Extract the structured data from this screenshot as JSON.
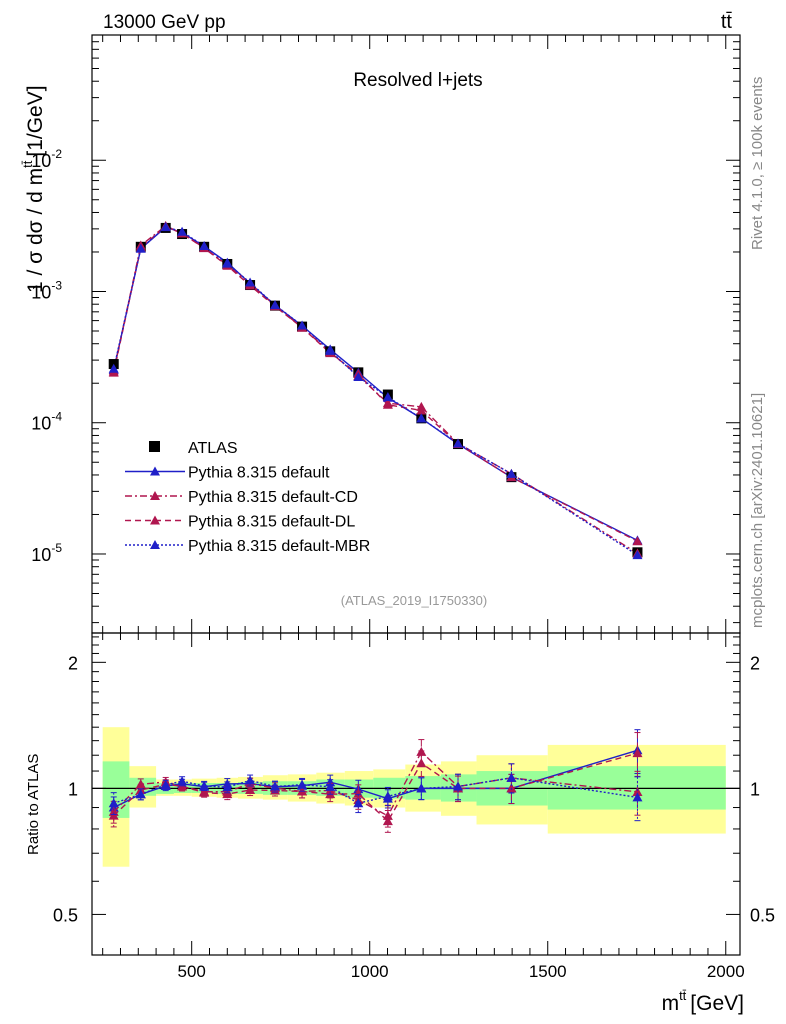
{
  "chart_data": {
    "type": "line",
    "header_left": "13000 GeV pp",
    "header_right": "tt̄",
    "title": "Resolved l+jets",
    "analysis_id": "(ATLAS_2019_I1750330)",
    "side_label_top": "Rivet 4.1.0, ≥ 100k events",
    "side_label_bottom": "mcplots.cern.ch [arXiv:2401.10621]",
    "xlabel": "m^{t t̄} [GeV]",
    "xlabel_main": "m",
    "xlabel_sup": "tt̄",
    "xlabel_unit": "[GeV]",
    "ylabel": "1 / σ dσ / d m^{tt̄} [1/GeV]",
    "ylabel_main": "1 / σ dσ / d m",
    "ylabel_sup": "tt̄",
    "ylabel_unit": "[1/GeV]",
    "ratio_ylabel": "Ratio to ATLAS",
    "xlim": [
      220,
      2040
    ],
    "ylim": [
      2.5e-06,
      0.09
    ],
    "yscale": "log",
    "ratio_ylim": [
      0.4,
      2.35
    ],
    "ratio_yscale": "log",
    "x_ticks": [
      "500",
      "1000",
      "1500",
      "2000"
    ],
    "y_ticks": [
      "10^{-5}",
      "10^{-4}",
      "10^{-3}",
      "10^{-2}"
    ],
    "ratio_ticks": [
      "0.5",
      "1",
      "2"
    ],
    "bin_edges": [
      250,
      325,
      400,
      450,
      500,
      570,
      630,
      700,
      770,
      850,
      930,
      1010,
      1100,
      1200,
      1300,
      1500,
      2000
    ],
    "legend": [
      "ATLAS",
      "Pythia 8.315 default",
      "Pythia 8.315 default-CD",
      "Pythia 8.315 default-DL",
      "Pythia 8.315 default-MBR"
    ],
    "legend_position": "lower-left",
    "data": {
      "name": "ATLAS",
      "x": [
        281,
        357,
        427,
        473,
        535,
        600,
        664,
        734,
        810,
        889,
        968,
        1051,
        1145,
        1248,
        1398,
        1752
      ],
      "y": [
        0.00028,
        0.00219,
        0.00305,
        0.00274,
        0.00219,
        0.00162,
        0.00112,
        0.00078,
        0.00054,
        0.00035,
        0.000242,
        0.000164,
        0.000108,
        6.88e-05,
        3.85e-05,
        1.03e-05
      ],
      "band_inner": [
        [
          0.85,
          1.16
        ],
        [
          0.96,
          1.06
        ],
        [
          0.97,
          1.03
        ],
        [
          0.975,
          1.03
        ],
        [
          0.975,
          1.03
        ],
        [
          0.97,
          1.03
        ],
        [
          0.97,
          1.035
        ],
        [
          0.965,
          1.04
        ],
        [
          0.965,
          1.04
        ],
        [
          0.96,
          1.05
        ],
        [
          0.95,
          1.05
        ],
        [
          0.945,
          1.06
        ],
        [
          0.94,
          1.07
        ],
        [
          0.93,
          1.08
        ],
        [
          0.91,
          1.1
        ],
        [
          0.89,
          1.13
        ]
      ],
      "band_outer": [
        [
          0.65,
          1.4
        ],
        [
          0.9,
          1.13
        ],
        [
          0.96,
          1.05
        ],
        [
          0.96,
          1.05
        ],
        [
          0.955,
          1.055
        ],
        [
          0.95,
          1.06
        ],
        [
          0.945,
          1.065
        ],
        [
          0.94,
          1.075
        ],
        [
          0.93,
          1.08
        ],
        [
          0.92,
          1.09
        ],
        [
          0.91,
          1.1
        ],
        [
          0.9,
          1.11
        ],
        [
          0.88,
          1.14
        ],
        [
          0.86,
          1.16
        ],
        [
          0.82,
          1.2
        ],
        [
          0.78,
          1.27
        ]
      ]
    },
    "series": [
      {
        "name": "Pythia 8.315 default",
        "color": "#1f1fc8",
        "dash": "",
        "x": [
          281,
          357,
          427,
          473,
          535,
          600,
          664,
          734,
          810,
          889,
          968,
          1051,
          1145,
          1248,
          1398,
          1752
        ],
        "y": [
          0.000252,
          0.00212,
          0.00309,
          0.00281,
          0.00221,
          0.00166,
          0.00115,
          0.000787,
          0.000548,
          0.000362,
          0.000241,
          0.000155,
          0.000108,
          6.88e-05,
          3.85e-05,
          1.27e-05
        ],
        "err": [
          0.06,
          0.03,
          0.025,
          0.025,
          0.025,
          0.03,
          0.03,
          0.03,
          0.035,
          0.04,
          0.05,
          0.05,
          0.06,
          0.07,
          0.08,
          0.12
        ]
      },
      {
        "name": "Pythia 8.315 default-CD",
        "color": "#b0164f",
        "dash": "7 3 2 3",
        "x": [
          281,
          357,
          427,
          473,
          535,
          600,
          664,
          734,
          810,
          889,
          968,
          1051,
          1145,
          1248,
          1398,
          1752
        ],
        "y": [
          0.000246,
          0.00224,
          0.00316,
          0.00277,
          0.00215,
          0.00159,
          0.00115,
          0.000781,
          0.000531,
          0.000346,
          0.000227,
          0.000141,
          0.000132,
          6.95e-05,
          4.08e-05,
          1.01e-05
        ],
        "err": [
          0.06,
          0.03,
          0.025,
          0.025,
          0.025,
          0.03,
          0.03,
          0.03,
          0.035,
          0.04,
          0.05,
          0.06,
          0.07,
          0.07,
          0.08,
          0.12
        ]
      },
      {
        "name": "Pythia 8.315 default-DL",
        "color": "#b0164f",
        "dash": "6 4",
        "x": [
          281,
          357,
          427,
          473,
          535,
          600,
          664,
          734,
          810,
          889,
          968,
          1051,
          1145,
          1248,
          1398,
          1752
        ],
        "y": [
          0.000241,
          0.00217,
          0.00312,
          0.00277,
          0.00214,
          0.00157,
          0.00111,
          0.000771,
          0.000531,
          0.000339,
          0.000235,
          0.000137,
          0.000124,
          6.88e-05,
          3.85e-05,
          1.25e-05
        ],
        "err": [
          0.06,
          0.03,
          0.025,
          0.025,
          0.025,
          0.03,
          0.03,
          0.03,
          0.035,
          0.04,
          0.05,
          0.06,
          0.07,
          0.07,
          0.08,
          0.12
        ]
      },
      {
        "name": "Pythia 8.315 default-MBR",
        "color": "#1f1fc8",
        "dash": "2 2",
        "x": [
          281,
          357,
          427,
          473,
          535,
          600,
          664,
          734,
          810,
          889,
          968,
          1051,
          1145,
          1248,
          1398,
          1752
        ],
        "y": [
          0.000258,
          0.00212,
          0.00311,
          0.00285,
          0.00222,
          0.00163,
          0.00117,
          0.000788,
          0.000551,
          0.000353,
          0.000223,
          0.000157,
          0.000108,
          6.95e-05,
          4.08e-05,
          9.8e-06
        ],
        "err": [
          0.06,
          0.03,
          0.025,
          0.025,
          0.025,
          0.03,
          0.03,
          0.03,
          0.035,
          0.04,
          0.05,
          0.05,
          0.06,
          0.07,
          0.08,
          0.12
        ]
      }
    ]
  }
}
